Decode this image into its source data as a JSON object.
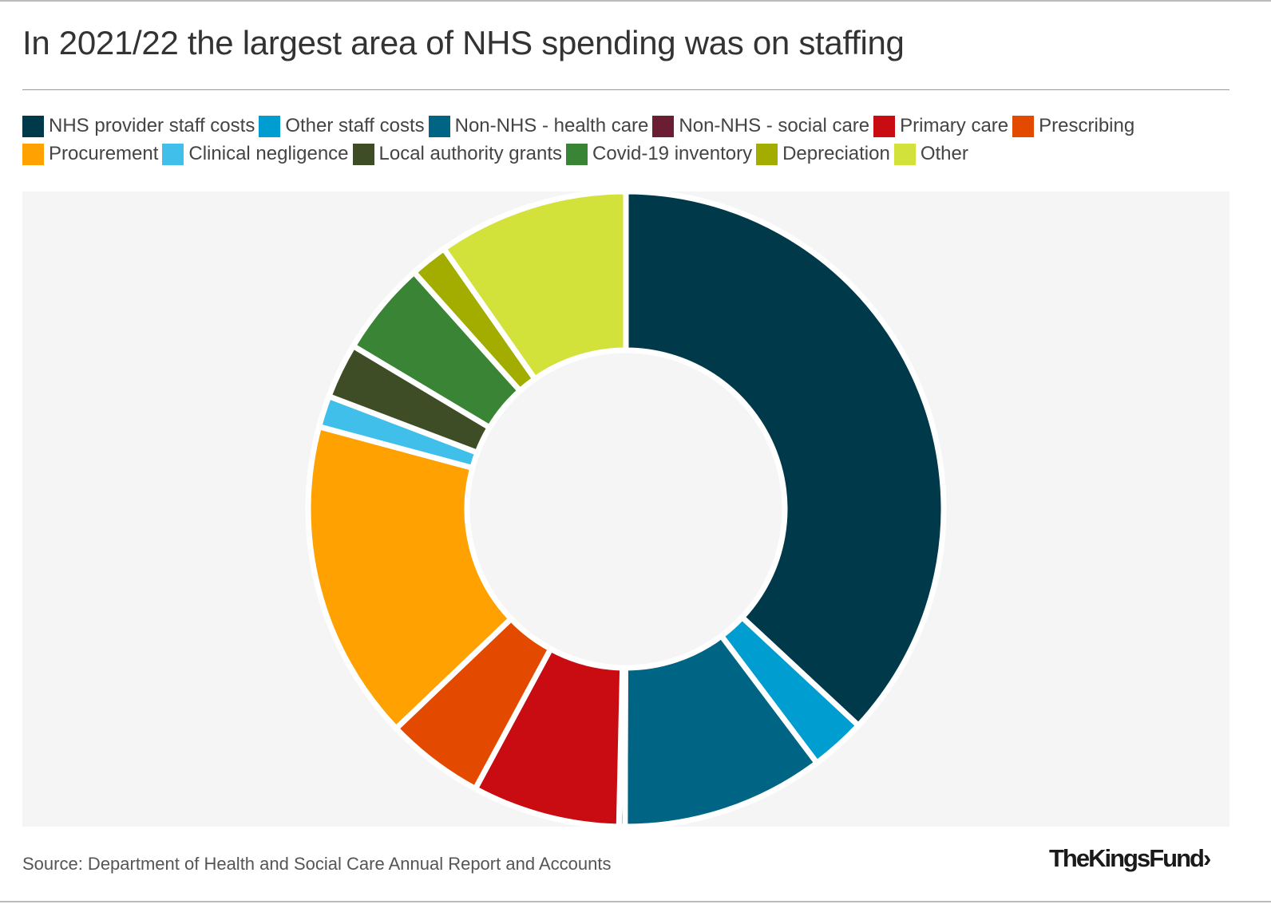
{
  "title": "In 2021/22 the largest area of NHS spending was on staffing",
  "source": "Source: Department of Health and Social Care Annual Report and Accounts",
  "logo": "The King's Fund",
  "logo_display": "TheKingsFund›",
  "chart_data": {
    "type": "pie",
    "variant": "donut",
    "title": "In 2021/22 the largest area of NHS spending was on staffing",
    "legend_position": "top",
    "unit": "percent of total (estimated)",
    "categories": [
      "NHS provider staff costs",
      "Other staff costs",
      "Non-NHS - health care",
      "Non-NHS - social care",
      "Primary care",
      "Prescribing",
      "Procurement",
      "Clinical negligence",
      "Local authority grants",
      "Covid-19 inventory",
      "Depreciation",
      "Other"
    ],
    "values": [
      36.9,
      2.8,
      10.3,
      0.3,
      7.5,
      5.0,
      16.3,
      1.6,
      2.8,
      4.8,
      1.9,
      9.7
    ],
    "colors": [
      "#003a4a",
      "#009dd1",
      "#006584",
      "#6b1e33",
      "#c90c11",
      "#e34a00",
      "#ffa100",
      "#40bfea",
      "#3e4d25",
      "#3a8436",
      "#a3ad00",
      "#d3e23b"
    ]
  }
}
